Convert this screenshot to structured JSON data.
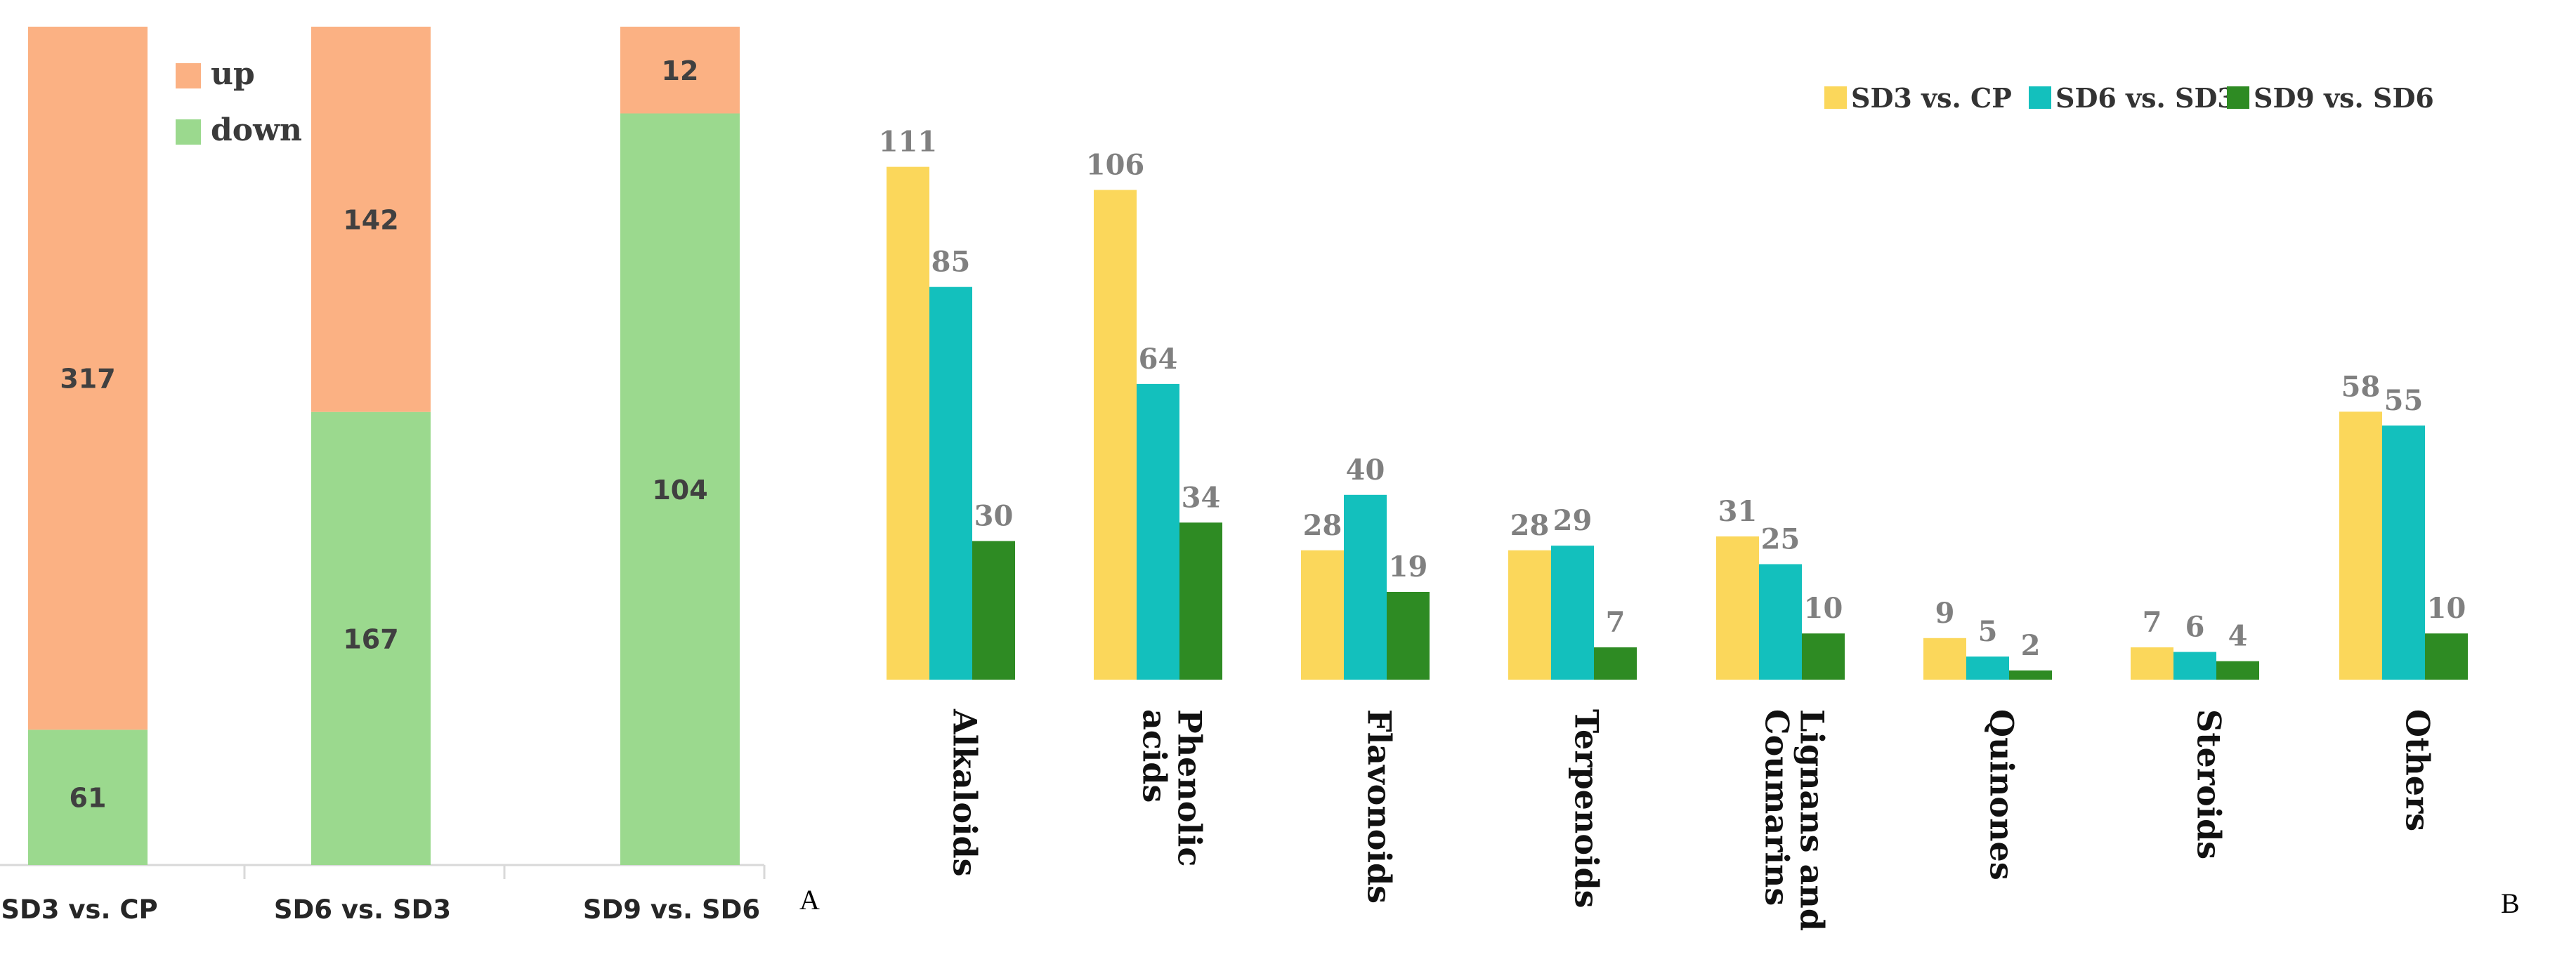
{
  "colors": {
    "up": "#fbb183",
    "down": "#9bd98e",
    "sd3_vs_cp": "#fbd75b",
    "sd6_vs_sd3": "#13c0bd",
    "sd9_vs_sd6": "#2e8b23",
    "value_text": "#808080",
    "axis": "#d9d9d9"
  },
  "panels": {
    "a_letter": "A",
    "b_letter": "B"
  },
  "chart_data": [
    {
      "type": "bar",
      "stacked": true,
      "categories": [
        "SD3 vs. CP",
        "SD6 vs. SD3",
        "SD9 vs. SD6"
      ],
      "series": [
        {
          "name": "up",
          "values": [
            317,
            142,
            12
          ]
        },
        {
          "name": "down",
          "values": [
            61,
            167,
            104
          ]
        }
      ],
      "legend": [
        "up",
        "down"
      ],
      "legend_position": "top-left",
      "grid": false
    },
    {
      "type": "bar",
      "categories": [
        "Alkaloids",
        "Phenolic acids",
        "Flavonoids",
        "Terpenoids",
        "Lignans and Coumarins",
        "Quinones",
        "Steroids",
        "Others"
      ],
      "category_lines": [
        [
          "Alkaloids"
        ],
        [
          "Phenolic",
          "acids"
        ],
        [
          "Flavonoids"
        ],
        [
          "Terpenoids"
        ],
        [
          "Lignans and",
          "Coumarins"
        ],
        [
          "Quinones"
        ],
        [
          "Steroids"
        ],
        [
          "Others"
        ]
      ],
      "series": [
        {
          "name": "SD3 vs. CP",
          "values": [
            111,
            106,
            28,
            28,
            31,
            9,
            7,
            58
          ]
        },
        {
          "name": "SD6 vs. SD3",
          "values": [
            85,
            64,
            40,
            29,
            25,
            5,
            6,
            55
          ]
        },
        {
          "name": "SD9 vs. SD6",
          "values": [
            30,
            34,
            19,
            7,
            10,
            2,
            4,
            10
          ]
        }
      ],
      "legend_position": "top-right",
      "grid": false
    }
  ]
}
